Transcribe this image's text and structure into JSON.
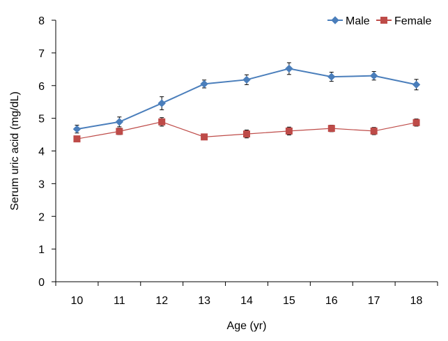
{
  "chart_data": {
    "type": "line",
    "x": [
      10,
      11,
      12,
      13,
      14,
      15,
      16,
      17,
      18
    ],
    "xlabel": "Age (yr)",
    "ylabel": "Serum uric acid (mg/dL)",
    "ylim": [
      0,
      8
    ],
    "yticks": [
      "0",
      "1",
      "2",
      "3",
      "4",
      "5",
      "6",
      "7",
      "8"
    ],
    "xticks": [
      "10",
      "11",
      "12",
      "13",
      "14",
      "15",
      "16",
      "17",
      "18"
    ],
    "grid": false,
    "legend_position": "top-right",
    "series": [
      {
        "name": "Male",
        "color": "#4a7ebb",
        "marker": "diamond",
        "values": [
          4.67,
          4.89,
          5.46,
          6.05,
          6.18,
          6.52,
          6.27,
          6.3,
          6.03
        ],
        "errors": [
          0.12,
          0.15,
          0.2,
          0.12,
          0.15,
          0.18,
          0.14,
          0.13,
          0.16
        ]
      },
      {
        "name": "Female",
        "color": "#be4b48",
        "marker": "square",
        "values": [
          4.37,
          4.6,
          4.89,
          4.43,
          4.52,
          4.61,
          4.69,
          4.61,
          4.87
        ],
        "errors": [
          0.07,
          0.1,
          0.13,
          0.07,
          0.12,
          0.12,
          0.1,
          0.11,
          0.11
        ]
      }
    ]
  }
}
